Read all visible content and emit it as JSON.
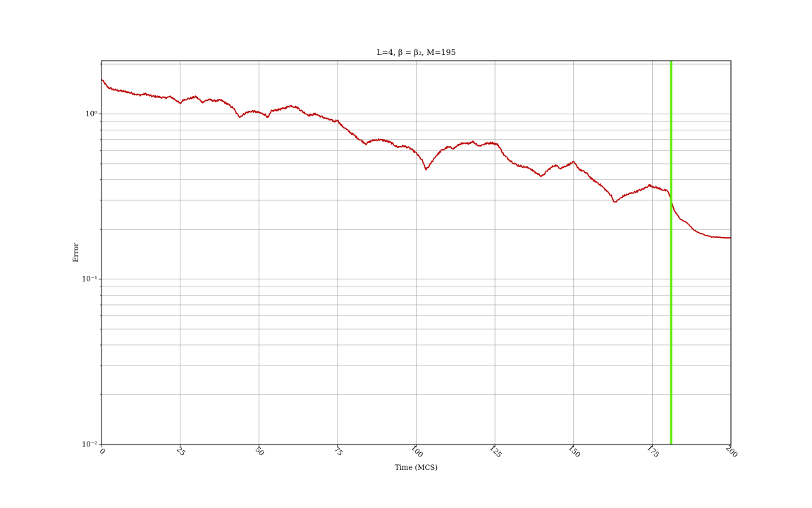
{
  "chart_data": {
    "type": "line",
    "title": "L=4, β = β₂, M=195",
    "xlabel": "Time (MCS)",
    "ylabel": "Error",
    "xlim": [
      0,
      200
    ],
    "ylim": [
      0.01,
      2.1
    ],
    "yscale": "log",
    "grid": true,
    "x_ticks": [
      0,
      25,
      50,
      75,
      100,
      125,
      150,
      175,
      200
    ],
    "y_ticks": [
      {
        "value": 1,
        "label": "10⁰"
      },
      {
        "value": 0.1,
        "label": "10⁻¹"
      },
      {
        "value": 0.01,
        "label": "10⁻²"
      }
    ],
    "series": [
      {
        "color": "#bb0000",
        "x": [
          0,
          2,
          4,
          6,
          8,
          10,
          12,
          14,
          16,
          18,
          20,
          22,
          24,
          25,
          26,
          28,
          30,
          32,
          34,
          36,
          38,
          40,
          42,
          43,
          44,
          46,
          48,
          50,
          52,
          53,
          54,
          56,
          58,
          60,
          62,
          64,
          66,
          68,
          70,
          72,
          74,
          75,
          76,
          78,
          80,
          82,
          84,
          86,
          88,
          90,
          92,
          94,
          96,
          98,
          100,
          102,
          103,
          104,
          106,
          108,
          110,
          112,
          114,
          116,
          118,
          120,
          122,
          124,
          126,
          128,
          130,
          132,
          134,
          136,
          138,
          140,
          142,
          144,
          146,
          148,
          150,
          152,
          154,
          156,
          158,
          160,
          162,
          163,
          164,
          166,
          168,
          170,
          172,
          174,
          176,
          178,
          180,
          181,
          182,
          184,
          186,
          188,
          190,
          192,
          194,
          196,
          198,
          200
        ],
        "y": [
          1.62,
          1.45,
          1.4,
          1.38,
          1.36,
          1.33,
          1.3,
          1.32,
          1.28,
          1.27,
          1.25,
          1.27,
          1.2,
          1.15,
          1.22,
          1.24,
          1.27,
          1.18,
          1.22,
          1.2,
          1.21,
          1.15,
          1.08,
          1.0,
          0.96,
          1.02,
          1.04,
          1.02,
          0.99,
          0.95,
          1.04,
          1.06,
          1.08,
          1.12,
          1.1,
          1.03,
          0.98,
          1.0,
          0.96,
          0.93,
          0.9,
          0.92,
          0.86,
          0.8,
          0.75,
          0.7,
          0.66,
          0.69,
          0.7,
          0.69,
          0.67,
          0.63,
          0.64,
          0.62,
          0.58,
          0.52,
          0.46,
          0.48,
          0.55,
          0.6,
          0.63,
          0.62,
          0.66,
          0.66,
          0.68,
          0.64,
          0.66,
          0.67,
          0.65,
          0.56,
          0.52,
          0.49,
          0.48,
          0.47,
          0.44,
          0.42,
          0.46,
          0.49,
          0.47,
          0.49,
          0.51,
          0.46,
          0.44,
          0.4,
          0.38,
          0.35,
          0.32,
          0.29,
          0.3,
          0.32,
          0.33,
          0.34,
          0.35,
          0.37,
          0.36,
          0.35,
          0.34,
          0.3,
          0.26,
          0.23,
          0.22,
          0.2,
          0.19,
          0.185,
          0.18,
          0.18,
          0.178,
          0.178
        ]
      }
    ],
    "vertical_line": {
      "x": 181,
      "color": "#55ee00"
    },
    "colors": {
      "grid": "#b0b0b0",
      "line": "#bb0000",
      "marker_line": "#55ee00"
    }
  }
}
